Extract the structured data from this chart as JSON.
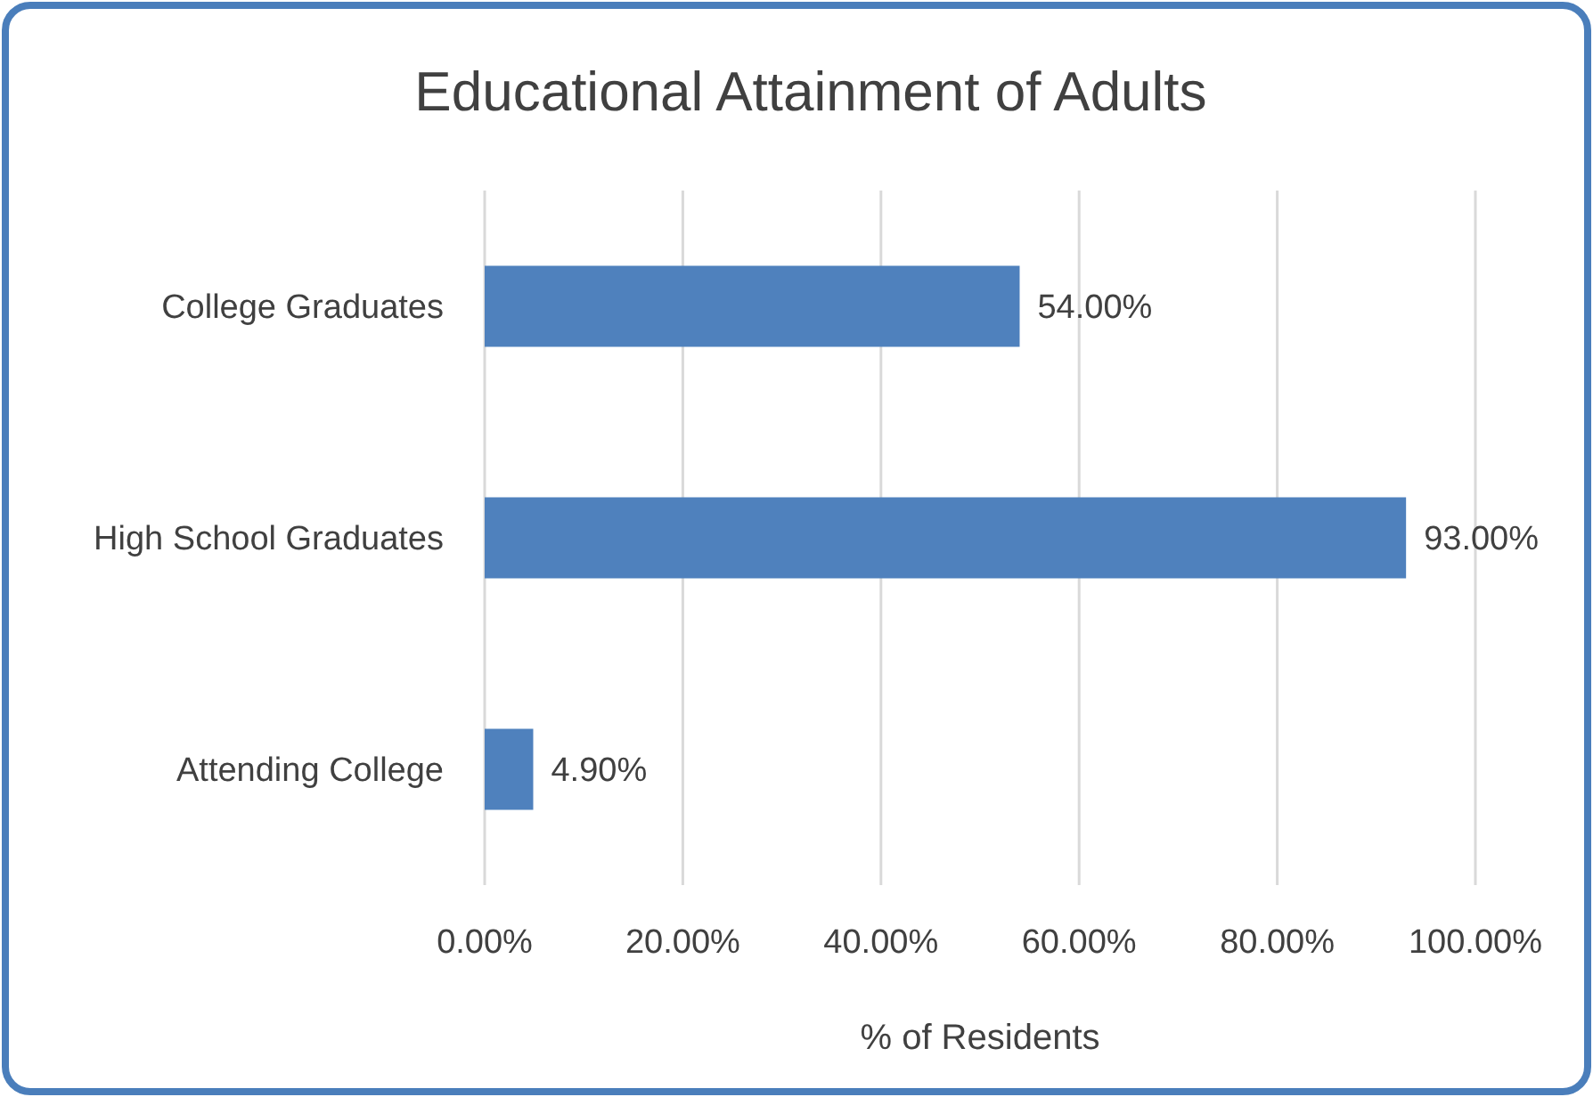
{
  "chart_data": {
    "type": "bar",
    "orientation": "horizontal",
    "title": "Educational Attainment of Adults",
    "xlabel": "% of Residents",
    "categories": [
      "College Graduates",
      "High School Graduates",
      "Attending College"
    ],
    "values": [
      54,
      93,
      4.9
    ],
    "value_labels": [
      "54.00%",
      "93.00%",
      "4.90%"
    ],
    "color": "#4f81bd",
    "xlim": [
      0,
      100
    ],
    "xticks": [
      {
        "value": 0,
        "label": "0.00%"
      },
      {
        "value": 20,
        "label": "20.00%"
      },
      {
        "value": 40,
        "label": "40.00%"
      },
      {
        "value": 60,
        "label": "60.00%"
      },
      {
        "value": 80,
        "label": "80.00%"
      },
      {
        "value": 100,
        "label": "100.00%"
      }
    ],
    "grid": "x"
  }
}
